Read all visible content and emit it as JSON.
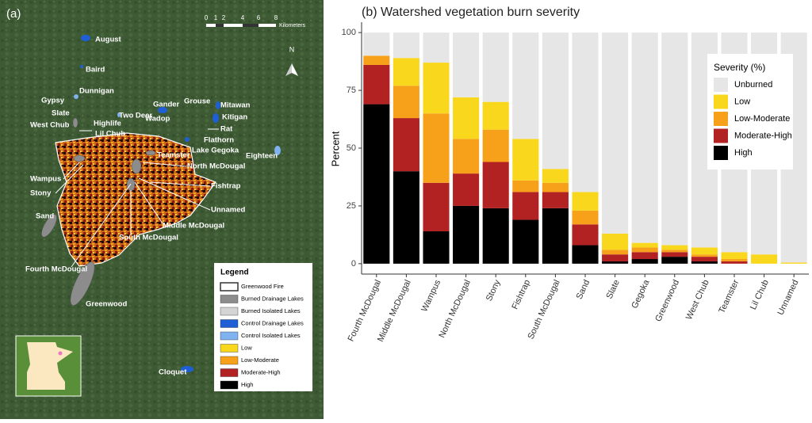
{
  "panel_a": {
    "label": "(a)",
    "north": "N",
    "scale_bar": {
      "ticks": [
        "0",
        "1",
        "2",
        "4",
        "6",
        "8"
      ],
      "unit": "Kilometers"
    },
    "labels": [
      "August",
      "Baird",
      "Dunnigan",
      "Gypsy",
      "Slate",
      "West Chub",
      "Highlife",
      "Lil Chub",
      "Two Deer",
      "Gander",
      "Grouse",
      "Mitawan",
      "Kitigan",
      "Wadop",
      "Rat",
      "Flathorn",
      "Lake Gegoka",
      "Teamster",
      "Eighteen",
      "North McDougal",
      "Wampus",
      "Stony",
      "Fishtrap",
      "Unnamed",
      "Sand",
      "Middle McDougal",
      "South McDougal",
      "Fourth McDougal",
      "Greenwood",
      "Cloquet"
    ],
    "legend": {
      "title": "Legend",
      "items": [
        {
          "label": "Greenwood Fire",
          "color": "#ffffff"
        },
        {
          "label": "Burned Drainage Lakes",
          "color": "#8c8c8c"
        },
        {
          "label": "Burned Isolated Lakes",
          "color": "#d4d4d4"
        },
        {
          "label": "Control Drainage Lakes",
          "color": "#1f5fd6"
        },
        {
          "label": "Control Isolated Lakes",
          "color": "#7fb2ee"
        },
        {
          "label": "Low",
          "color": "#f9d71c"
        },
        {
          "label": "Low-Moderate",
          "color": "#f7a11a"
        },
        {
          "label": "Moderate-High",
          "color": "#b22222"
        },
        {
          "label": "High",
          "color": "#000000"
        }
      ]
    }
  },
  "chart_data": {
    "type": "stacked_bar",
    "title": "(b) Watershed vegetation burn severity",
    "y_label": "Percent",
    "categories": [
      "Fourth McDougal",
      "Middle McDougal",
      "Wampus",
      "North McDougal",
      "Stony",
      "Fishtrap",
      "South McDougal",
      "Sand",
      "Slate",
      "Gegoka",
      "Greenwood",
      "West Chub",
      "Teamster",
      "Lil Chub",
      "Unnamed"
    ],
    "series": [
      {
        "name": "High",
        "color": "#000000",
        "values": [
          69,
          40,
          14,
          25,
          24,
          19,
          24,
          8,
          1,
          2,
          3,
          1,
          0,
          0,
          0
        ]
      },
      {
        "name": "Moderate-High",
        "color": "#b22222",
        "values": [
          17,
          23,
          21,
          14,
          20,
          12,
          7,
          9,
          3,
          3,
          2,
          2,
          1,
          0,
          0
        ]
      },
      {
        "name": "Low-Moderate",
        "color": "#f7a11a",
        "values": [
          4,
          14,
          30,
          15,
          14,
          5,
          4,
          6,
          2,
          2,
          1,
          1,
          1,
          0,
          0
        ]
      },
      {
        "name": "Low",
        "color": "#f9d71c",
        "values": [
          0,
          12,
          22,
          18,
          12,
          18,
          6,
          8,
          7,
          2,
          2,
          3,
          3,
          4,
          0.5
        ]
      },
      {
        "name": "Unburned",
        "color": "#e6e6e6",
        "values": [
          10,
          11,
          13,
          28,
          30,
          46,
          59,
          69,
          87,
          91,
          92,
          93,
          95,
          96,
          99.5
        ]
      }
    ],
    "ylim": [
      -4.5,
      104.5
    ],
    "yticks": [
      0,
      25,
      50,
      75,
      100
    ],
    "legend_title": "Severity (%)",
    "legend_position": "top-right"
  }
}
